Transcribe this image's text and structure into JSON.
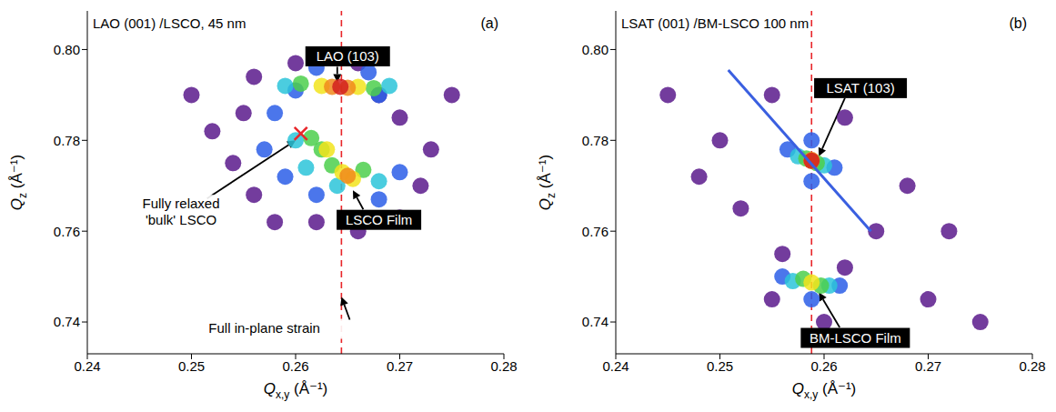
{
  "chart_data": [
    {
      "type": "scatter",
      "panel": "(a)",
      "title": "LAO (001) /LSCO, 45 nm",
      "xlabel": "Qx,y (Å⁻¹)",
      "ylabel": "Qz (Å⁻¹)",
      "xlim": [
        0.24,
        0.28
      ],
      "xticks": [
        0.24,
        0.25,
        0.26,
        0.27,
        0.28
      ],
      "ylim": [
        0.733,
        0.8085
      ],
      "yticks": [
        0.74,
        0.76,
        0.78,
        {
          "value": 0.8,
          "label": "0.80"
        }
      ],
      "series": [
        {
          "color": "#5a1a8c",
          "marker": "circle",
          "x": [
            0.25,
            0.252,
            0.254,
            0.256,
            0.258,
            0.262,
            0.266,
            0.27,
            0.272,
            0.273,
            0.27,
            0.266,
            0.26,
            0.256,
            0.255,
            0.268,
            0.275
          ],
          "values": [
            0.79,
            0.782,
            0.775,
            0.768,
            0.762,
            0.762,
            0.76,
            0.763,
            0.77,
            0.778,
            0.785,
            0.797,
            0.797,
            0.794,
            0.786,
            0.79,
            0.79
          ]
        },
        {
          "color": "#2c5ee8",
          "marker": "circle",
          "x": [
            0.257,
            0.259,
            0.262,
            0.268,
            0.27,
            0.258,
            0.262,
            0.267,
            0.26,
            0.268
          ],
          "values": [
            0.778,
            0.772,
            0.768,
            0.767,
            0.773,
            0.786,
            0.796,
            0.795,
            0.791,
            0.79
          ]
        },
        {
          "color": "#2bc4d9",
          "marker": "circle",
          "x": [
            0.26,
            0.261,
            0.264,
            0.268,
            0.259,
            0.269
          ],
          "values": [
            0.78,
            0.774,
            0.77,
            0.771,
            0.792,
            0.792
          ]
        },
        {
          "color": "#4ccf4c",
          "marker": "circle",
          "x": [
            0.2625,
            0.2635,
            0.2665,
            0.2615,
            0.2605,
            0.2675
          ],
          "values": [
            0.778,
            0.7745,
            0.7735,
            0.7805,
            0.7925,
            0.7915
          ]
        },
        {
          "color": "#f2e41c",
          "marker": "circle",
          "x": [
            0.2645,
            0.2655,
            0.263,
            0.2625,
            0.266
          ],
          "values": [
            0.773,
            0.7715,
            0.778,
            0.792,
            0.7918
          ]
        },
        {
          "color": "#f08a1c",
          "marker": "circle",
          "x": [
            0.265,
            0.2635,
            0.265
          ],
          "values": [
            0.7722,
            0.7918,
            0.7916
          ]
        },
        {
          "color": "#d21f1f",
          "marker": "circle",
          "x": [
            0.2643
          ],
          "values": [
            0.7918
          ]
        },
        {
          "color": "#e8262a",
          "marker": "x",
          "x": [
            0.2605
          ],
          "values": [
            0.7815
          ]
        }
      ],
      "reference_lines": [
        {
          "x": 0.2644,
          "color": "#e8262a",
          "line_style": "dashed"
        }
      ],
      "peak_labels": [
        {
          "text": "LAO (103)",
          "x": 0.265,
          "y": 0.7985,
          "arrow": [
            [
              0.264,
              0.7962
            ],
            [
              0.264,
              0.7928
            ]
          ]
        },
        {
          "text": "LSCO Film",
          "x": 0.268,
          "y": 0.7625,
          "arrow": [
            [
              0.2665,
              0.7648
            ],
            [
              0.2655,
              0.769
            ]
          ]
        }
      ],
      "annotations": [
        {
          "text": "Fully relaxed\n'bulk' LSCO",
          "x": 0.249,
          "y": 0.764,
          "arrow": [
            [
              0.2515,
              0.7672
            ],
            [
              0.26,
              0.78
            ]
          ]
        },
        {
          "text": "Full in-plane strain",
          "x": 0.257,
          "y": 0.7385,
          "arrow": [
            [
              0.2652,
              0.7405
            ],
            [
              0.2644,
              0.7455
            ]
          ]
        }
      ]
    },
    {
      "type": "scatter",
      "panel": "(b)",
      "title": "LSAT (001) /BM-LSCO 100 nm",
      "xlabel": "Qx,y (Å⁻¹)",
      "ylabel": "Qz (Å⁻¹)",
      "xlim": [
        0.24,
        0.28
      ],
      "xticks": [
        0.24,
        0.25,
        0.26,
        0.27,
        0.28
      ],
      "ylim": [
        0.733,
        0.8085
      ],
      "yticks": [
        0.74,
        0.76,
        0.78,
        {
          "value": 0.8,
          "label": "0.80"
        }
      ],
      "series": [
        {
          "color": "#5a1a8c",
          "marker": "circle",
          "x": [
            0.245,
            0.25,
            0.255,
            0.262,
            0.268,
            0.265,
            0.252,
            0.256,
            0.262,
            0.27,
            0.275,
            0.255,
            0.26,
            0.248,
            0.272
          ],
          "values": [
            0.79,
            0.78,
            0.79,
            0.785,
            0.77,
            0.76,
            0.765,
            0.755,
            0.752,
            0.745,
            0.74,
            0.745,
            0.74,
            0.772,
            0.76
          ]
        },
        {
          "color": "#2c5ee8",
          "marker": "circle",
          "x": [
            0.2565,
            0.261,
            0.2588,
            0.2588,
            0.256,
            0.2615,
            0.2588
          ],
          "values": [
            0.778,
            0.774,
            0.78,
            0.771,
            0.75,
            0.748,
            0.745
          ]
        },
        {
          "color": "#2bc4d9",
          "marker": "circle",
          "x": [
            0.2575,
            0.26,
            0.257,
            0.2605
          ],
          "values": [
            0.7765,
            0.7745,
            0.749,
            0.748
          ]
        },
        {
          "color": "#4ccf4c",
          "marker": "circle",
          "x": [
            0.2583,
            0.2593,
            0.258,
            0.2597
          ],
          "values": [
            0.776,
            0.775,
            0.7495,
            0.748
          ]
        },
        {
          "color": "#f2e41c",
          "marker": "circle",
          "x": [
            0.2588,
            0.2588
          ],
          "values": [
            0.7755,
            0.7487
          ]
        },
        {
          "color": "#f08a1c",
          "marker": "circle",
          "x": [
            0.2588
          ],
          "values": [
            0.7757
          ]
        },
        {
          "color": "#d21f1f",
          "marker": "circle",
          "x": [
            0.2588
          ],
          "values": [
            0.7755
          ]
        },
        {
          "type": "line",
          "color": "#3a5fe0",
          "x": [
            0.2508,
            0.2645
          ],
          "values": [
            0.7955,
            0.76
          ]
        }
      ],
      "reference_lines": [
        {
          "x": 0.2588,
          "color": "#e8262a",
          "line_style": "dashed"
        }
      ],
      "peak_labels": [
        {
          "text": "LSAT (103)",
          "x": 0.2635,
          "y": 0.7915,
          "arrow": [
            [
              0.262,
              0.7893
            ],
            [
              0.2595,
              0.7765
            ]
          ]
        },
        {
          "text": "BM-LSCO Film",
          "x": 0.263,
          "y": 0.7365,
          "arrow": [
            [
              0.2615,
              0.7388
            ],
            [
              0.2595,
              0.7465
            ]
          ]
        }
      ],
      "annotations": []
    }
  ]
}
